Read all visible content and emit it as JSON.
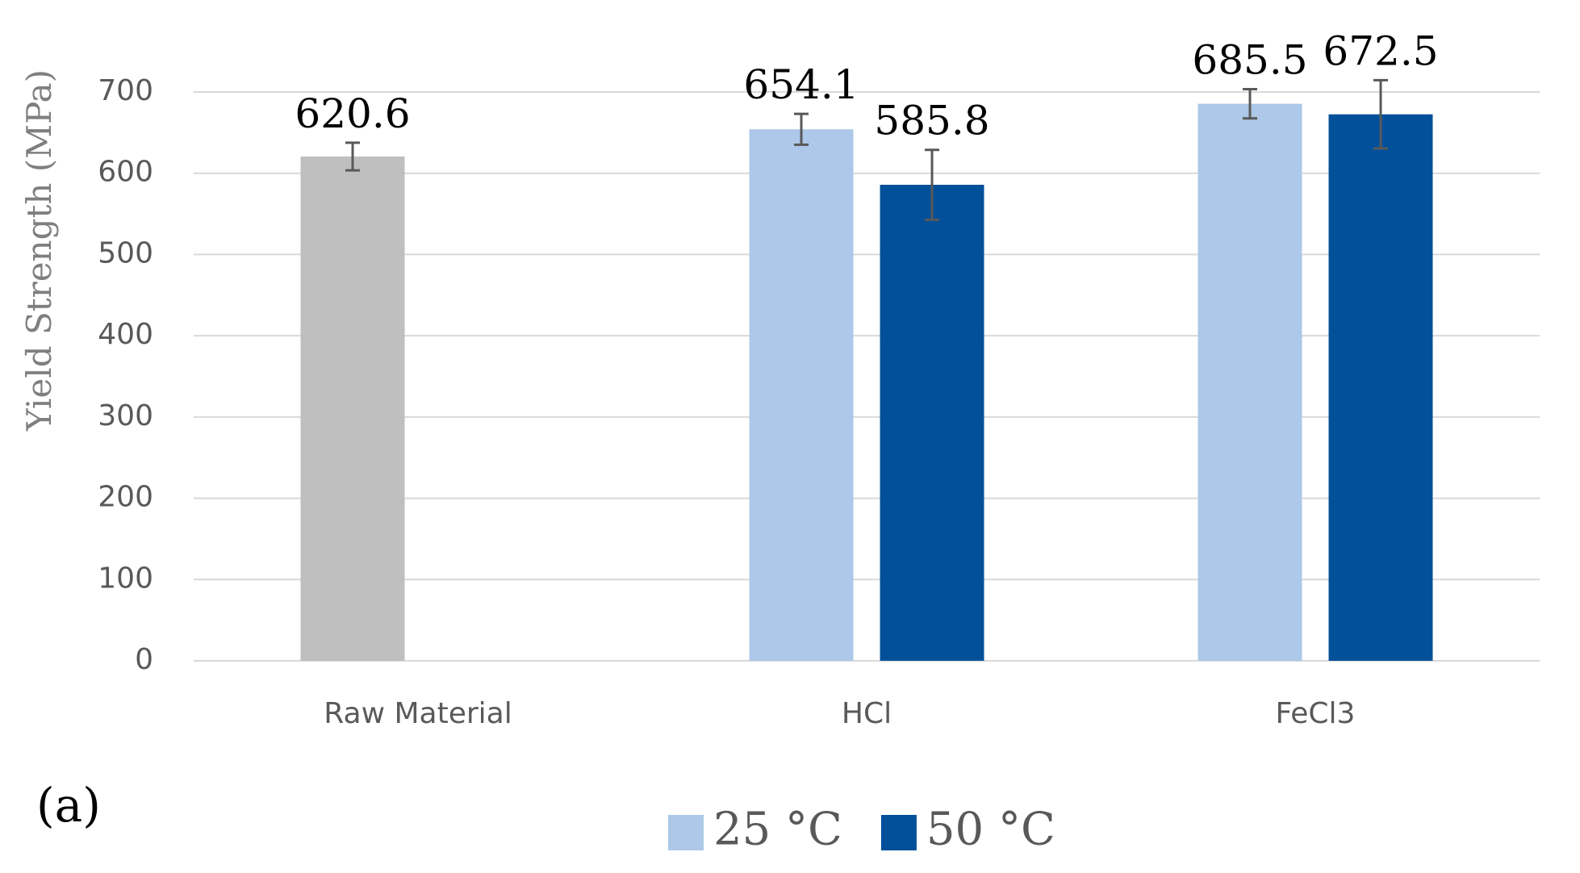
{
  "chart_data": {
    "type": "bar",
    "y_label": "Yield Strength (MPa)",
    "panel_label": "(a)",
    "categories": [
      "Raw Material",
      "HCl",
      "FeCl3"
    ],
    "series": [
      {
        "name": "25 °C",
        "color": "#adc8e8",
        "colors": [
          "#bfbfbf",
          "#adc8e8",
          "#adc8e8"
        ],
        "values": [
          620.6,
          654.1,
          685.5
        ],
        "errors": [
          17,
          19,
          18
        ]
      },
      {
        "name": "50 °C",
        "color": "#02509a",
        "values": [
          null,
          585.8,
          672.5
        ],
        "errors": [
          null,
          43,
          42
        ]
      }
    ],
    "ylim": [
      0,
      700
    ],
    "yticks": [
      0,
      100,
      200,
      300,
      400,
      500,
      600,
      700
    ],
    "grid": true
  }
}
